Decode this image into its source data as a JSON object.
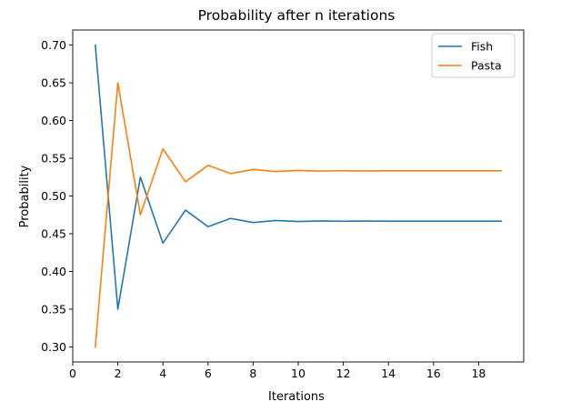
{
  "chart_data": {
    "type": "line",
    "title": "Probability after n iterations",
    "xlabel": "Iterations",
    "ylabel": "Probability",
    "xlim": [
      0,
      20
    ],
    "ylim": [
      0.28,
      0.72
    ],
    "xticks": [
      0,
      2,
      4,
      6,
      8,
      10,
      12,
      14,
      16,
      18
    ],
    "yticks": [
      0.3,
      0.35,
      0.4,
      0.45,
      0.5,
      0.55,
      0.6,
      0.65,
      0.7
    ],
    "xtick_labels": [
      "0",
      "2",
      "4",
      "6",
      "8",
      "10",
      "12",
      "14",
      "16",
      "18"
    ],
    "ytick_labels": [
      "0.30",
      "0.35",
      "0.40",
      "0.45",
      "0.50",
      "0.55",
      "0.60",
      "0.65",
      "0.70"
    ],
    "grid": false,
    "legend_position": "top-right",
    "x": [
      1,
      2,
      3,
      4,
      5,
      6,
      7,
      8,
      9,
      10,
      11,
      12,
      13,
      14,
      15,
      16,
      17,
      18,
      19
    ],
    "series": [
      {
        "name": "Fish",
        "color": "#1f77b4",
        "values": [
          0.7,
          0.35,
          0.525,
          0.4375,
          0.48125,
          0.459375,
          0.4703125,
          0.46484375,
          0.467578,
          0.466211,
          0.466895,
          0.466553,
          0.466724,
          0.466638,
          0.466681,
          0.46666,
          0.46667,
          0.466665,
          0.466668
        ]
      },
      {
        "name": "Pasta",
        "color": "#ff7f0e",
        "values": [
          0.3,
          0.65,
          0.475,
          0.5625,
          0.51875,
          0.540625,
          0.5296875,
          0.53515625,
          0.532422,
          0.533789,
          0.533105,
          0.533447,
          0.533276,
          0.533362,
          0.533319,
          0.53334,
          0.53333,
          0.533335,
          0.533332
        ]
      }
    ]
  }
}
